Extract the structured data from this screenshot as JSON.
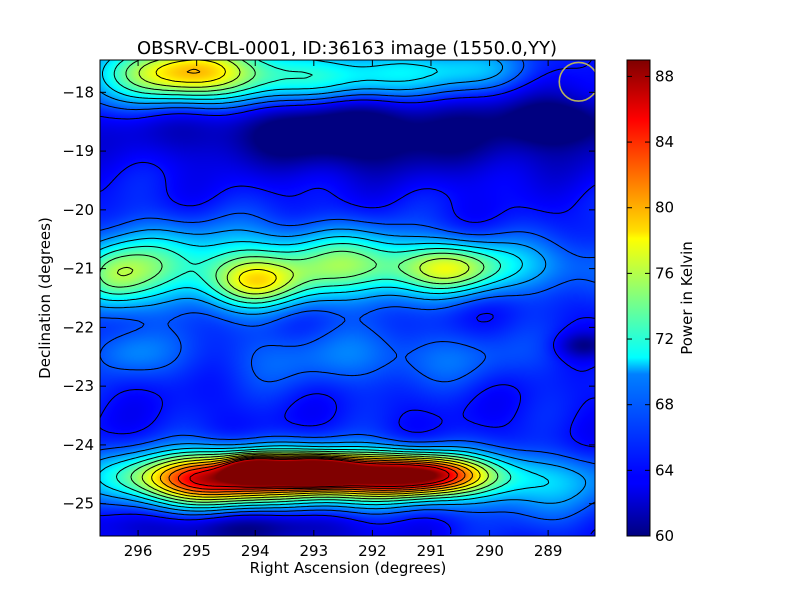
{
  "chart_data": {
    "type": "heatmap",
    "title": "OBSRV-CBL-0001, ID:36163 image (1550.0,YY)",
    "xlabel": "Right Ascension (degrees)",
    "ylabel": "Declination (degrees)",
    "xlim": [
      296.65,
      288.2
    ],
    "ylim": [
      -25.55,
      -17.45
    ],
    "xticks": [
      296,
      295,
      294,
      293,
      292,
      291,
      290,
      289
    ],
    "xtick_labels": [
      "296",
      "295",
      "294",
      "293",
      "292",
      "291",
      "290",
      "289"
    ],
    "yticks": [
      -18,
      -19,
      -20,
      -21,
      -22,
      -23,
      -24,
      -25
    ],
    "ytick_labels": [
      "−18",
      "−19",
      "−20",
      "−21",
      "−22",
      "−23",
      "−24",
      "−25"
    ],
    "colorbar": {
      "label": "Power in Kelvin",
      "range": [
        60,
        89
      ],
      "ticks": [
        60,
        64,
        68,
        72,
        76,
        80,
        84,
        88
      ],
      "colormap": "jet"
    },
    "background_level": 64,
    "features": [
      {
        "ra": 295.2,
        "dec": -17.65,
        "peak": 74,
        "width_ra": 0.9,
        "width_dec": 0.35
      },
      {
        "ra": 294.6,
        "dec": -17.75,
        "peak": 71,
        "width_ra": 1.8,
        "width_dec": 0.45
      },
      {
        "ra": 291.9,
        "dec": -17.8,
        "peak": 69,
        "width_ra": 1.2,
        "width_dec": 0.3
      },
      {
        "ra": 290.5,
        "dec": -17.55,
        "peak": 68,
        "width_ra": 0.8,
        "width_dec": 0.25
      },
      {
        "ra": 293.8,
        "dec": -18.45,
        "peak": 60.5,
        "width_ra": 2.2,
        "width_dec": 0.45
      },
      {
        "ra": 290.2,
        "dec": -18.7,
        "peak": 61,
        "width_ra": 2.4,
        "width_dec": 0.5
      },
      {
        "ra": 288.8,
        "dec": -18.5,
        "peak": 60,
        "width_ra": 0.6,
        "width_dec": 0.25
      },
      {
        "ra": 292.6,
        "dec": -18.75,
        "peak": 61.5,
        "width_ra": 1.0,
        "width_dec": 0.4
      },
      {
        "ra": 294.0,
        "dec": -21.25,
        "peak": 73,
        "width_ra": 0.6,
        "width_dec": 0.3
      },
      {
        "ra": 294.2,
        "dec": -20.9,
        "peak": 71,
        "width_ra": 1.5,
        "width_dec": 0.45
      },
      {
        "ra": 292.3,
        "dec": -20.95,
        "peak": 70,
        "width_ra": 0.7,
        "width_dec": 0.4
      },
      {
        "ra": 290.7,
        "dec": -21.0,
        "peak": 72,
        "width_ra": 0.6,
        "width_dec": 0.3
      },
      {
        "ra": 290.0,
        "dec": -20.95,
        "peak": 69,
        "width_ra": 1.5,
        "width_dec": 0.35
      },
      {
        "ra": 296.5,
        "dec": -21.1,
        "peak": 72,
        "width_ra": 0.45,
        "width_dec": 0.4
      },
      {
        "ra": 295.8,
        "dec": -21.0,
        "peak": 68,
        "width_ra": 0.5,
        "width_dec": 0.5
      },
      {
        "ra": 296.2,
        "dec": -22.4,
        "peak": 67,
        "width_ra": 0.5,
        "width_dec": 0.3
      },
      {
        "ra": 293.3,
        "dec": -22.5,
        "peak": 66,
        "width_ra": 1.5,
        "width_dec": 0.4
      },
      {
        "ra": 290.8,
        "dec": -22.5,
        "peak": 66,
        "width_ra": 1.5,
        "width_dec": 0.35
      },
      {
        "ra": 293.0,
        "dec": -24.45,
        "peak": 88,
        "width_ra": 0.45,
        "width_dec": 0.14
      },
      {
        "ra": 294.0,
        "dec": -24.42,
        "peak": 82,
        "width_ra": 0.3,
        "width_dec": 0.13
      },
      {
        "ra": 293.7,
        "dec": -24.5,
        "peak": 77,
        "width_ra": 1.7,
        "width_dec": 0.3
      },
      {
        "ra": 291.3,
        "dec": -24.5,
        "peak": 78,
        "width_ra": 0.8,
        "width_dec": 0.22
      },
      {
        "ra": 292.2,
        "dec": -24.55,
        "peak": 74,
        "width_ra": 2.3,
        "width_dec": 0.3
      },
      {
        "ra": 295.0,
        "dec": -24.65,
        "peak": 73,
        "width_ra": 0.8,
        "width_dec": 0.3
      },
      {
        "ra": 296.4,
        "dec": -24.3,
        "peak": 64,
        "width_ra": 0.3,
        "width_dec": 0.15
      },
      {
        "ra": 294.2,
        "dec": -25.4,
        "peak": 60.5,
        "width_ra": 1.5,
        "width_dec": 0.2
      },
      {
        "ra": 289.0,
        "dec": -24.9,
        "peak": 66,
        "width_ra": 1.0,
        "width_dec": 0.4
      },
      {
        "ra": 288.4,
        "dec": -22.3,
        "peak": 60.5,
        "width_ra": 0.3,
        "width_dec": 0.15
      }
    ],
    "contour_levels": [
      64,
      66,
      68,
      70,
      72,
      74,
      76,
      78,
      80,
      82,
      84,
      86
    ],
    "beam_marker": {
      "ra": 288.48,
      "dec": -17.82,
      "radius_deg": 0.33,
      "color": "#b5b060"
    }
  }
}
